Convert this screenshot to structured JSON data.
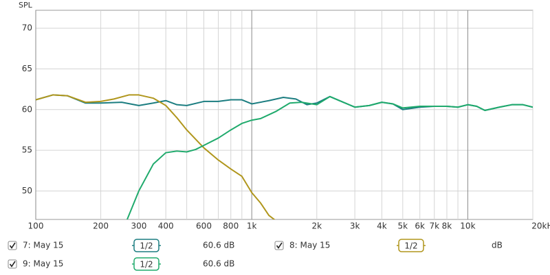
{
  "chart_data": {
    "type": "line",
    "ylabel": "SPL",
    "xscale": "log",
    "xlim": [
      100,
      20000
    ],
    "ylim": [
      46.5,
      72.2
    ],
    "yticks": [
      50,
      55,
      60,
      65,
      70
    ],
    "xticks": [
      100,
      200,
      300,
      400,
      600,
      800,
      {
        "value": 1000,
        "label": "1k"
      },
      {
        "value": 2000,
        "label": "2k"
      },
      {
        "value": 3000,
        "label": "3k"
      },
      {
        "value": 4000,
        "label": "4k"
      },
      {
        "value": 5000,
        "label": "5k"
      },
      {
        "value": 6000,
        "label": "6k"
      },
      {
        "value": 7000,
        "label": "7k"
      },
      {
        "value": 8000,
        "label": "8k"
      },
      {
        "value": 10000,
        "label": "10k"
      },
      {
        "value": 20000,
        "label": "20kHz"
      }
    ],
    "xminor": [
      500,
      700,
      900,
      9000
    ],
    "grid": true,
    "series": [
      {
        "name": "7: May 15",
        "color": "#1b7d80",
        "smoothing": "1/2",
        "readout": "60.6 dB",
        "checked": true,
        "x": [
          100,
          120,
          140,
          170,
          200,
          250,
          300,
          350,
          400,
          450,
          500,
          600,
          700,
          800,
          900,
          1000,
          1200,
          1400,
          1600,
          1800,
          2000,
          2300,
          2600,
          3000,
          3500,
          4000,
          4500,
          5000,
          6000,
          7000,
          8000,
          9000,
          10000,
          11000,
          12000,
          14000,
          16000,
          18000,
          20000
        ],
        "values": [
          61.2,
          61.8,
          61.7,
          60.8,
          60.8,
          60.9,
          60.5,
          60.8,
          61.1,
          60.6,
          60.5,
          61.0,
          61.0,
          61.2,
          61.2,
          60.7,
          61.1,
          61.5,
          61.3,
          60.6,
          60.8,
          61.6,
          61.0,
          60.3,
          60.5,
          60.9,
          60.7,
          60.0,
          60.3,
          60.4,
          60.4,
          60.3,
          60.6,
          60.4,
          59.9,
          60.3,
          60.6,
          60.6,
          60.3
        ]
      },
      {
        "name": "8: May 15",
        "color": "#b0961c",
        "smoothing": "1/2",
        "readout": "dB",
        "checked": true,
        "x": [
          100,
          120,
          140,
          170,
          200,
          230,
          270,
          300,
          350,
          400,
          450,
          500,
          600,
          700,
          800,
          900,
          1000,
          1100,
          1200,
          1300
        ],
        "values": [
          61.2,
          61.8,
          61.7,
          60.9,
          61.0,
          61.3,
          61.8,
          61.8,
          61.4,
          60.5,
          59.0,
          57.5,
          55.3,
          53.8,
          52.7,
          51.8,
          49.8,
          48.5,
          47.0,
          46.3
        ]
      },
      {
        "name": "9: May 15",
        "color": "#1faa6c",
        "smoothing": "1/2",
        "readout": "60.6 dB",
        "checked": true,
        "x": [
          265,
          300,
          350,
          400,
          450,
          500,
          550,
          600,
          700,
          800,
          900,
          1000,
          1100,
          1300,
          1500,
          1700,
          2000,
          2300,
          2600,
          3000,
          3500,
          4000,
          4500,
          5000,
          6000,
          7000,
          8000,
          9000,
          10000,
          11000,
          12000,
          14000,
          16000,
          18000,
          20000
        ],
        "values": [
          46.5,
          50.0,
          53.3,
          54.7,
          54.9,
          54.8,
          55.1,
          55.6,
          56.5,
          57.5,
          58.3,
          58.7,
          58.9,
          59.8,
          60.8,
          60.9,
          60.6,
          61.6,
          61.0,
          60.3,
          60.5,
          60.9,
          60.7,
          60.2,
          60.4,
          60.4,
          60.4,
          60.3,
          60.6,
          60.4,
          59.9,
          60.3,
          60.6,
          60.6,
          60.3
        ]
      }
    ]
  }
}
